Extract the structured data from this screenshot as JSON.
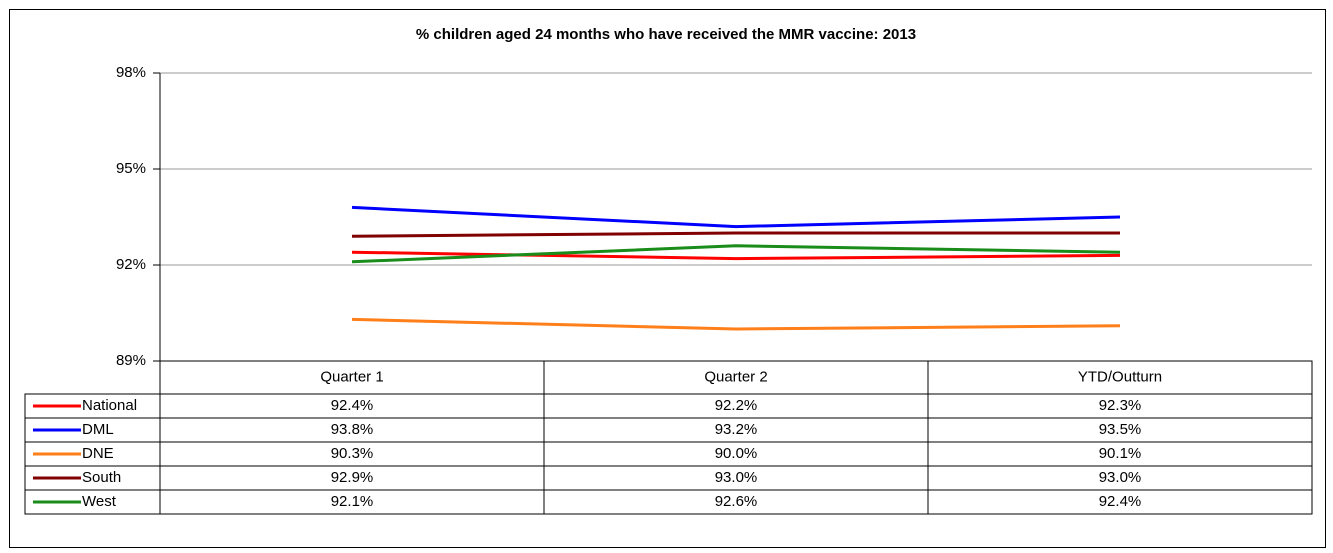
{
  "chart_data": {
    "type": "line",
    "title": "% children aged 24 months who have received the MMR vaccine:  2013",
    "categories": [
      "Quarter 1",
      "Quarter 2",
      "YTD/Outturn"
    ],
    "series": [
      {
        "name": "National",
        "color": "#ff0000",
        "values": [
          92.4,
          92.2,
          92.3
        ],
        "value_labels": [
          "92.4%",
          "92.2%",
          "92.3%"
        ]
      },
      {
        "name": "DML",
        "color": "#0000ff",
        "values": [
          93.8,
          93.2,
          93.5
        ],
        "value_labels": [
          "93.8%",
          "93.2%",
          "93.5%"
        ]
      },
      {
        "name": "DNE",
        "color": "#ff7f1a",
        "values": [
          90.3,
          90.0,
          90.1
        ],
        "value_labels": [
          "90.3%",
          "90.0%",
          "90.1%"
        ]
      },
      {
        "name": "South",
        "color": "#800000",
        "values": [
          92.9,
          93.0,
          93.0
        ],
        "value_labels": [
          "92.9%",
          "93.0%",
          "93.0%"
        ]
      },
      {
        "name": "West",
        "color": "#1a8c1a",
        "values": [
          92.1,
          92.6,
          92.4
        ],
        "value_labels": [
          "92.1%",
          "92.6%",
          "92.4%"
        ]
      }
    ],
    "ylim": [
      89,
      98
    ],
    "yticks": [
      {
        "value": 89,
        "label": "89%"
      },
      {
        "value": 92,
        "label": "92%"
      },
      {
        "value": 95,
        "label": "95%"
      },
      {
        "value": 98,
        "label": "98%"
      }
    ],
    "grid": true
  }
}
